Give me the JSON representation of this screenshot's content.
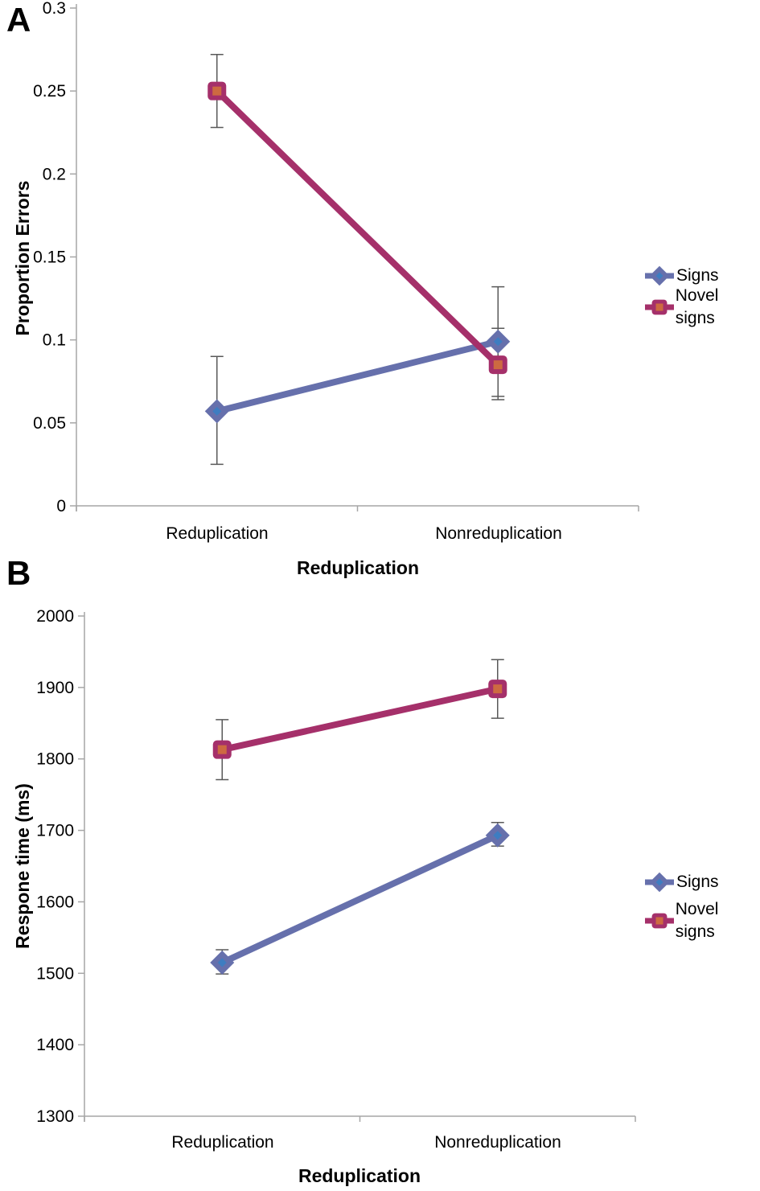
{
  "figure": {
    "panels": [
      {
        "label": "A"
      },
      {
        "label": "B"
      }
    ]
  },
  "colors": {
    "signs_line": "#6670AC",
    "signs_marker_center": "#3E7DC1",
    "novel_line": "#A5306A",
    "novel_marker_center": "#CD6A41",
    "error_bar": "#595959",
    "axis": "#A6A6A6"
  },
  "chart_data": [
    {
      "type": "line",
      "title": "",
      "categories": [
        "Reduplication",
        "Nonreduplication"
      ],
      "xlabel": "Reduplication",
      "ylabel": "Proportion Errors",
      "ylim": [
        0,
        0.3
      ],
      "yticks": [
        0.3,
        0.25,
        0.2,
        0.15,
        0.1,
        0.05,
        0
      ],
      "ytick_labels": [
        "0.3",
        "0.25",
        "0.2",
        "0.15",
        "0.1",
        "0.05",
        "0"
      ],
      "grid": false,
      "legend_position": "right",
      "series": [
        {
          "name": "Signs",
          "marker": "diamond",
          "color": "#6670AC",
          "marker_center_color": "#3E7DC1",
          "values": [
            0.057,
            0.099
          ],
          "error_bars": [
            [
              0.025,
              0.09
            ],
            [
              0.066,
              0.132
            ]
          ]
        },
        {
          "name": "Novel signs",
          "marker": "square",
          "color": "#A5306A",
          "marker_center_color": "#CD6A41",
          "values": [
            0.25,
            0.085
          ],
          "error_bars": [
            [
              0.228,
              0.272
            ],
            [
              0.064,
              0.107
            ]
          ]
        }
      ]
    },
    {
      "type": "line",
      "title": "",
      "categories": [
        "Reduplication",
        "Nonreduplication"
      ],
      "xlabel": "Reduplication",
      "ylabel": "Respone time (ms)",
      "ylim": [
        1300,
        2000
      ],
      "yticks": [
        2000,
        1900,
        1800,
        1700,
        1600,
        1500,
        1400,
        1300
      ],
      "ytick_labels": [
        "2000",
        "1900",
        "1800",
        "1700",
        "1600",
        "1500",
        "1400",
        "1300"
      ],
      "grid": false,
      "legend_position": "right",
      "series": [
        {
          "name": "Signs",
          "marker": "diamond",
          "color": "#6670AC",
          "marker_center_color": "#3E7DC1",
          "values": [
            1515,
            1693
          ],
          "error_bars": [
            [
              1499,
              1533
            ],
            [
              1678,
              1711
            ]
          ]
        },
        {
          "name": "Novel signs",
          "marker": "square",
          "color": "#A5306A",
          "marker_center_color": "#CD6A41",
          "values": [
            1813,
            1898
          ],
          "error_bars": [
            [
              1771,
              1855
            ],
            [
              1857,
              1939
            ]
          ]
        }
      ]
    }
  ]
}
